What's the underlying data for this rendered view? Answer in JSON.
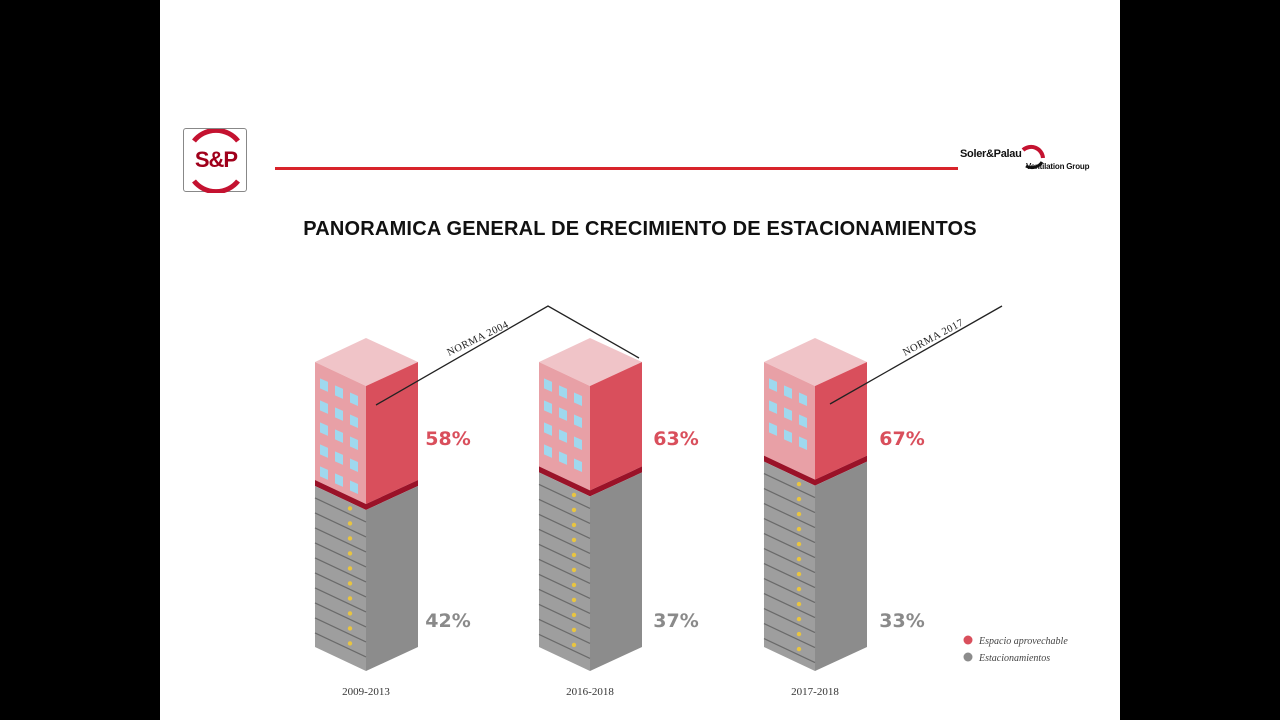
{
  "header": {
    "logo_text": "S&P",
    "brand_name": "Soler&Palau",
    "brand_sub": "Ventilation Group"
  },
  "title": "PANORAMICA GENERAL DE CRECIMIENTO DE ESTACIONAMIENTOS",
  "colors": {
    "espacio": "#d94f5c",
    "espacio_light": "#e8a0a6",
    "estacionamientos": "#8c8c8c",
    "divider": "#9a1228",
    "rule": "#d8232a"
  },
  "chart_data": {
    "type": "bar",
    "categories": [
      "2009-2013",
      "2016-2018",
      "2017-2018"
    ],
    "series": [
      {
        "name": "Espacio aprovechable",
        "values": [
          58,
          63,
          67
        ],
        "labels": [
          "58%",
          "63%",
          "67%"
        ]
      },
      {
        "name": "Estacionamientos",
        "values": [
          42,
          37,
          33
        ],
        "labels": [
          "42%",
          "37%",
          "33%"
        ]
      }
    ],
    "annotations": [
      "NORMA 2004",
      "NORMA 2017"
    ],
    "stacked": true,
    "legend": "bottom-right"
  }
}
